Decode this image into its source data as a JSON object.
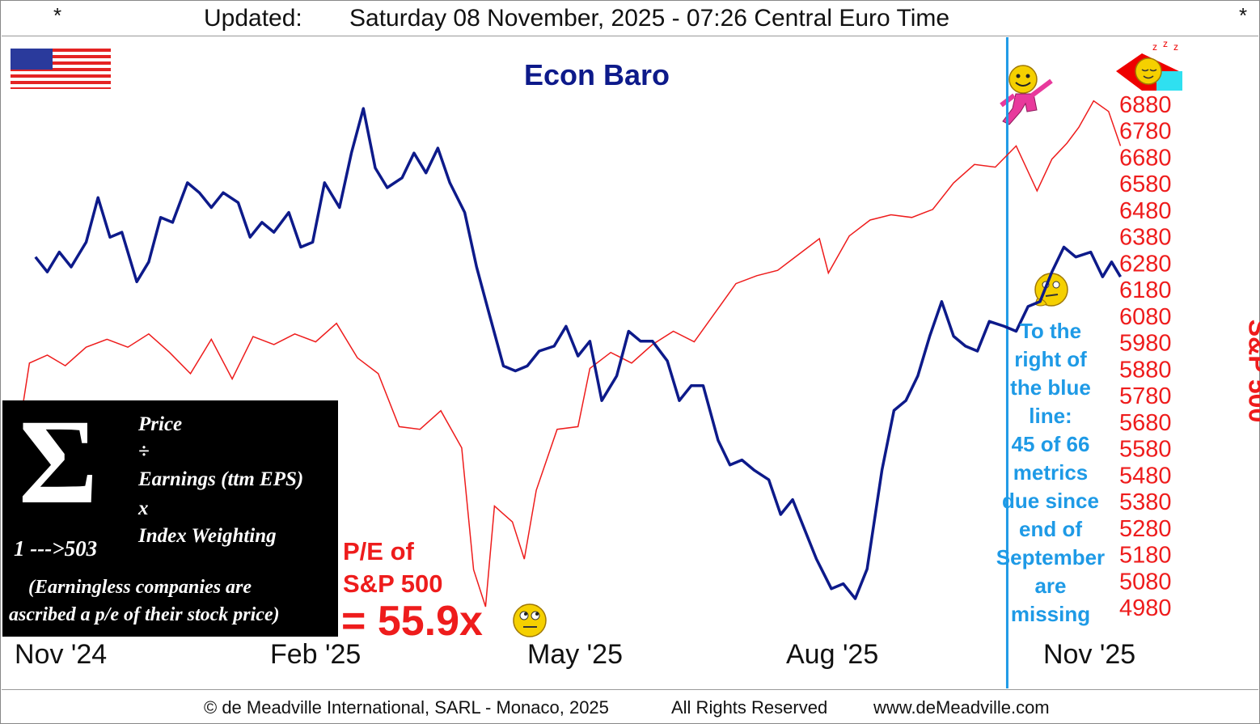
{
  "header": {
    "left_marker": "*",
    "right_marker": "*",
    "updated_label": "Updated:",
    "timestamp": "Saturday 08 November, 2025 - 07:26 Central Euro Time"
  },
  "footer": {
    "copyright": "© de Meadville International, SARL - Monaco, 2025",
    "rights": "All Rights Reserved",
    "website": "www.deMeadville.com"
  },
  "sigma_box": {
    "symbol": "Σ",
    "range": "1 --->503",
    "line1": "Price",
    "line2": "÷",
    "line3": "Earnings (ttm EPS)",
    "line4": "x",
    "line5": "Index Weighting",
    "note1": "(Earningless companies are",
    "note2": "ascribed a p/e of their stock price)"
  },
  "pe": {
    "line1": "P/E of",
    "line2": "S&P 500",
    "value": "= 55.9x"
  },
  "note": {
    "lines": [
      "To the",
      "right of",
      "the blue",
      "line:",
      "45 of 66",
      "metrics",
      "due since",
      "end of",
      "September",
      "are",
      "missing"
    ]
  },
  "icons": [
    "us-flag-icon",
    "sleeping-face-icon",
    "dancing-smiley-icon",
    "thinking-face-icon",
    "rolling-eyes-icon"
  ],
  "colors": {
    "econ_baro": "#0d1a8a",
    "sp500": "#ee1c1c",
    "divider": "#1e9ae6",
    "note_text": "#1e9ae6"
  },
  "chart_data": {
    "type": "line",
    "title": "Econ Baro",
    "right_axis_label": "S&P 500",
    "x_tick_labels": [
      "Nov '24",
      "Feb '25",
      "May '25",
      "Aug '25",
      "Nov '25"
    ],
    "y_right_ticks": [
      6880,
      6780,
      6680,
      6580,
      6480,
      6380,
      6280,
      6180,
      6080,
      5980,
      5880,
      5780,
      5680,
      5580,
      5480,
      5380,
      5280,
      5180,
      5080,
      4980
    ],
    "y_right_range": [
      4980,
      6880
    ],
    "x_range": [
      "2024-11-01",
      "2025-11-15"
    ],
    "data_cutoff": "2025-09-30",
    "grid": false,
    "series": [
      {
        "name": "Econ Baro",
        "unit": "index (unlabeled left scale, 0 = low, 100 = high)",
        "points": [
          [
            "2024-11-08",
            69
          ],
          [
            "2024-11-12",
            66
          ],
          [
            "2024-11-16",
            70
          ],
          [
            "2024-11-20",
            67
          ],
          [
            "2024-11-25",
            72
          ],
          [
            "2024-11-29",
            81
          ],
          [
            "2024-12-03",
            73
          ],
          [
            "2024-12-07",
            74
          ],
          [
            "2024-12-12",
            64
          ],
          [
            "2024-12-16",
            68
          ],
          [
            "2024-12-20",
            77
          ],
          [
            "2024-12-24",
            76
          ],
          [
            "2024-12-29",
            84
          ],
          [
            "2025-01-02",
            82
          ],
          [
            "2025-01-06",
            79
          ],
          [
            "2025-01-10",
            82
          ],
          [
            "2025-01-15",
            80
          ],
          [
            "2025-01-19",
            73
          ],
          [
            "2025-01-23",
            76
          ],
          [
            "2025-01-27",
            74
          ],
          [
            "2025-02-01",
            78
          ],
          [
            "2025-02-05",
            71
          ],
          [
            "2025-02-09",
            72
          ],
          [
            "2025-02-13",
            84
          ],
          [
            "2025-02-18",
            79
          ],
          [
            "2025-02-22",
            90
          ],
          [
            "2025-02-26",
            99
          ],
          [
            "2025-03-02",
            87
          ],
          [
            "2025-03-06",
            83
          ],
          [
            "2025-03-11",
            85
          ],
          [
            "2025-03-15",
            90
          ],
          [
            "2025-03-19",
            86
          ],
          [
            "2025-03-23",
            91
          ],
          [
            "2025-03-27",
            84
          ],
          [
            "2025-04-01",
            78
          ],
          [
            "2025-04-05",
            67
          ],
          [
            "2025-04-09",
            58
          ],
          [
            "2025-04-14",
            47
          ],
          [
            "2025-04-18",
            46
          ],
          [
            "2025-04-22",
            47
          ],
          [
            "2025-04-26",
            50
          ],
          [
            "2025-05-01",
            51
          ],
          [
            "2025-05-05",
            55
          ],
          [
            "2025-05-09",
            49
          ],
          [
            "2025-05-13",
            52
          ],
          [
            "2025-05-17",
            40
          ],
          [
            "2025-05-22",
            45
          ],
          [
            "2025-05-26",
            54
          ],
          [
            "2025-05-30",
            52
          ],
          [
            "2025-06-03",
            52
          ],
          [
            "2025-06-08",
            48
          ],
          [
            "2025-06-12",
            40
          ],
          [
            "2025-06-16",
            43
          ],
          [
            "2025-06-20",
            43
          ],
          [
            "2025-06-25",
            32
          ],
          [
            "2025-06-29",
            27
          ],
          [
            "2025-07-03",
            28
          ],
          [
            "2025-07-07",
            26
          ],
          [
            "2025-07-12",
            24
          ],
          [
            "2025-07-16",
            17
          ],
          [
            "2025-07-20",
            20
          ],
          [
            "2025-07-24",
            14
          ],
          [
            "2025-07-28",
            8
          ],
          [
            "2025-08-02",
            2
          ],
          [
            "2025-08-06",
            3
          ],
          [
            "2025-08-10",
            0
          ],
          [
            "2025-08-14",
            6
          ],
          [
            "2025-08-19",
            26
          ],
          [
            "2025-08-23",
            38
          ],
          [
            "2025-08-27",
            40
          ],
          [
            "2025-08-31",
            45
          ],
          [
            "2025-09-04",
            53
          ],
          [
            "2025-09-08",
            60
          ],
          [
            "2025-09-12",
            53
          ],
          [
            "2025-09-16",
            51
          ],
          [
            "2025-09-20",
            50
          ],
          [
            "2025-09-24",
            56
          ],
          [
            "2025-09-29",
            55
          ],
          [
            "2025-10-03",
            54
          ],
          [
            "2025-10-07",
            59
          ],
          [
            "2025-10-11",
            60
          ],
          [
            "2025-10-15",
            66
          ],
          [
            "2025-10-19",
            71
          ],
          [
            "2025-10-23",
            69
          ],
          [
            "2025-10-28",
            70
          ],
          [
            "2025-11-01",
            65
          ],
          [
            "2025-11-04",
            68
          ],
          [
            "2025-11-07",
            65
          ]
        ]
      },
      {
        "name": "S&P 500",
        "unit": "index level (right axis)",
        "points": [
          [
            "2024-11-01",
            5540
          ],
          [
            "2024-11-06",
            5900
          ],
          [
            "2024-11-12",
            5930
          ],
          [
            "2024-11-18",
            5890
          ],
          [
            "2024-11-25",
            5960
          ],
          [
            "2024-12-02",
            5990
          ],
          [
            "2024-12-09",
            5960
          ],
          [
            "2024-12-16",
            6010
          ],
          [
            "2024-12-23",
            5940
          ],
          [
            "2024-12-30",
            5860
          ],
          [
            "2025-01-06",
            5990
          ],
          [
            "2025-01-13",
            5840
          ],
          [
            "2025-01-20",
            6000
          ],
          [
            "2025-01-27",
            5970
          ],
          [
            "2025-02-03",
            6010
          ],
          [
            "2025-02-10",
            5980
          ],
          [
            "2025-02-17",
            6050
          ],
          [
            "2025-02-24",
            5920
          ],
          [
            "2025-03-03",
            5860
          ],
          [
            "2025-03-10",
            5660
          ],
          [
            "2025-03-17",
            5650
          ],
          [
            "2025-03-24",
            5720
          ],
          [
            "2025-03-31",
            5580
          ],
          [
            "2025-04-04",
            5120
          ],
          [
            "2025-04-08",
            4980
          ],
          [
            "2025-04-11",
            5360
          ],
          [
            "2025-04-17",
            5300
          ],
          [
            "2025-04-21",
            5160
          ],
          [
            "2025-04-25",
            5420
          ],
          [
            "2025-05-02",
            5650
          ],
          [
            "2025-05-09",
            5660
          ],
          [
            "2025-05-13",
            5880
          ],
          [
            "2025-05-20",
            5940
          ],
          [
            "2025-05-27",
            5900
          ],
          [
            "2025-06-03",
            5970
          ],
          [
            "2025-06-10",
            6020
          ],
          [
            "2025-06-17",
            5980
          ],
          [
            "2025-06-24",
            6090
          ],
          [
            "2025-07-01",
            6200
          ],
          [
            "2025-07-08",
            6230
          ],
          [
            "2025-07-15",
            6250
          ],
          [
            "2025-07-22",
            6310
          ],
          [
            "2025-07-29",
            6370
          ],
          [
            "2025-08-01",
            6240
          ],
          [
            "2025-08-08",
            6380
          ],
          [
            "2025-08-15",
            6440
          ],
          [
            "2025-08-22",
            6460
          ],
          [
            "2025-08-29",
            6450
          ],
          [
            "2025-09-05",
            6480
          ],
          [
            "2025-09-12",
            6580
          ],
          [
            "2025-09-19",
            6650
          ],
          [
            "2025-09-26",
            6640
          ],
          [
            "2025-10-03",
            6720
          ],
          [
            "2025-10-10",
            6550
          ],
          [
            "2025-10-15",
            6670
          ],
          [
            "2025-10-20",
            6730
          ],
          [
            "2025-10-24",
            6790
          ],
          [
            "2025-10-29",
            6890
          ],
          [
            "2025-11-03",
            6850
          ],
          [
            "2025-11-07",
            6720
          ]
        ]
      }
    ]
  }
}
